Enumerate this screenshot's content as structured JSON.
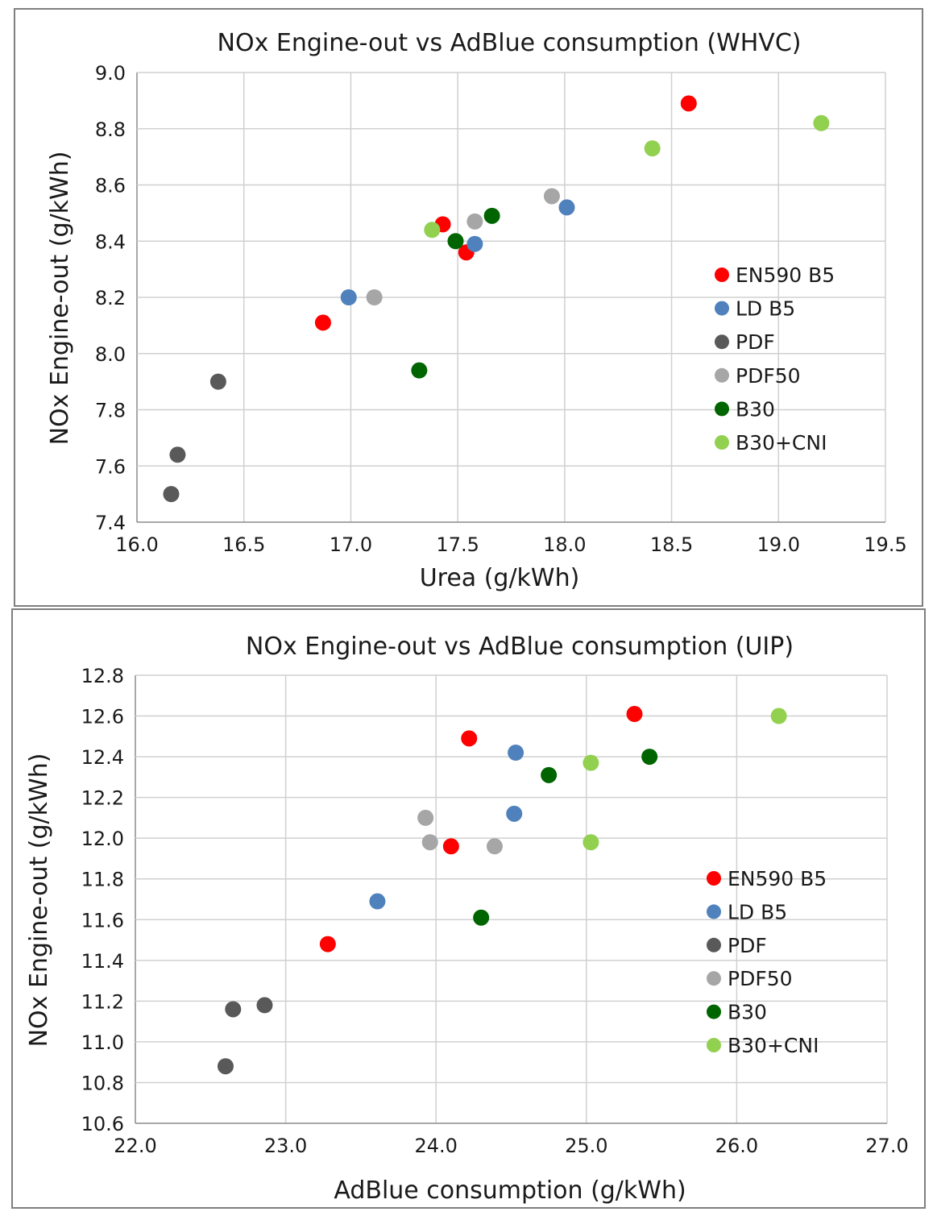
{
  "colors": {
    "EN590 B5": "#ff0000",
    "LD B5": "#4f81bd",
    "PDF": "#595959",
    "PDF50": "#a6a6a6",
    "B30": "#006400",
    "B30+CNI": "#92d050"
  },
  "chart_data": [
    {
      "type": "scatter",
      "title": "NOx Engine-out vs AdBlue consumption  (WHVC)",
      "xlabel": "Urea (g/kWh)",
      "ylabel": "NOx Engine-out  (g/kWh)",
      "xlim": [
        16.0,
        19.5
      ],
      "ylim": [
        7.4,
        9.0
      ],
      "xticks": [
        "16.0",
        "16.5",
        "17.0",
        "17.5",
        "18.0",
        "18.5",
        "19.0",
        "19.5"
      ],
      "yticks": [
        "7.4",
        "7.6",
        "7.8",
        "8.0",
        "8.2",
        "8.4",
        "8.6",
        "8.8",
        "9.0"
      ],
      "grid": true,
      "legend_position": "right",
      "series": [
        {
          "name": "EN590 B5",
          "points": [
            [
              16.87,
              8.11
            ],
            [
              17.43,
              8.46
            ],
            [
              17.54,
              8.36
            ],
            [
              18.58,
              8.89
            ]
          ]
        },
        {
          "name": "LD B5",
          "points": [
            [
              16.99,
              8.2
            ],
            [
              17.58,
              8.39
            ],
            [
              18.01,
              8.52
            ]
          ]
        },
        {
          "name": "PDF",
          "points": [
            [
              16.16,
              7.5
            ],
            [
              16.19,
              7.64
            ],
            [
              16.38,
              7.9
            ]
          ]
        },
        {
          "name": "PDF50",
          "points": [
            [
              17.11,
              8.2
            ],
            [
              17.58,
              8.47
            ],
            [
              17.94,
              8.56
            ]
          ]
        },
        {
          "name": "B30",
          "points": [
            [
              17.32,
              7.94
            ],
            [
              17.49,
              8.4
            ],
            [
              17.66,
              8.49
            ]
          ]
        },
        {
          "name": "B30+CNI",
          "points": [
            [
              17.38,
              8.44
            ],
            [
              18.41,
              8.73
            ],
            [
              19.2,
              8.82
            ]
          ]
        }
      ]
    },
    {
      "type": "scatter",
      "title": "NOx Engine-out vs AdBlue consumption (UIP)",
      "xlabel": "AdBlue consumption  (g/kWh)",
      "ylabel": "NOx Engine-out  (g/kWh)",
      "xlim": [
        22.0,
        27.0
      ],
      "ylim": [
        10.6,
        12.8
      ],
      "xticks": [
        "22.0",
        "23.0",
        "24.0",
        "25.0",
        "26.0",
        "27.0"
      ],
      "yticks": [
        "10.6",
        "10.8",
        "11.0",
        "11.2",
        "11.4",
        "11.6",
        "11.8",
        "12.0",
        "12.2",
        "12.4",
        "12.6",
        "12.8"
      ],
      "grid": true,
      "legend_position": "right",
      "series": [
        {
          "name": "EN590 B5",
          "points": [
            [
              23.28,
              11.48
            ],
            [
              24.1,
              11.96
            ],
            [
              24.22,
              12.49
            ],
            [
              25.32,
              12.61
            ]
          ]
        },
        {
          "name": "LD B5",
          "points": [
            [
              23.61,
              11.69
            ],
            [
              24.52,
              12.12
            ],
            [
              24.53,
              12.42
            ]
          ]
        },
        {
          "name": "PDF",
          "points": [
            [
              22.6,
              10.88
            ],
            [
              22.65,
              11.16
            ],
            [
              22.86,
              11.18
            ]
          ]
        },
        {
          "name": "PDF50",
          "points": [
            [
              23.93,
              12.1
            ],
            [
              23.96,
              11.98
            ],
            [
              24.39,
              11.96
            ]
          ]
        },
        {
          "name": "B30",
          "points": [
            [
              24.3,
              11.61
            ],
            [
              24.75,
              12.31
            ],
            [
              25.42,
              12.4
            ]
          ]
        },
        {
          "name": "B30+CNI",
          "points": [
            [
              25.03,
              11.98
            ],
            [
              25.03,
              12.37
            ],
            [
              26.28,
              12.6
            ]
          ]
        }
      ]
    }
  ]
}
